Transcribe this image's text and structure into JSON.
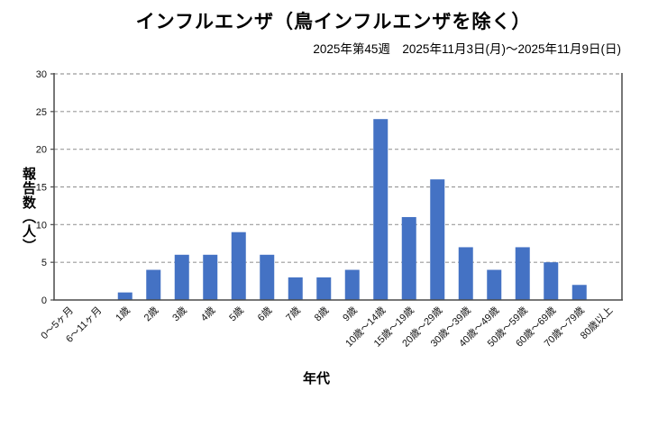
{
  "chart_data": {
    "type": "bar",
    "title": "インフルエンザ（鳥インフルエンザを除く）",
    "subtitle": "2025年第45週　2025年11月3日(月)～2025年11月9日(日)",
    "xlabel": "年代",
    "ylabel": "報告数（人）",
    "categories": [
      "0～5ヶ月",
      "6～11ヶ月",
      "1歳",
      "2歳",
      "3歳",
      "4歳",
      "5歳",
      "6歳",
      "7歳",
      "8歳",
      "9歳",
      "10歳～14歳",
      "15歳～19歳",
      "20歳～29歳",
      "30歳～39歳",
      "40歳～49歳",
      "50歳～59歳",
      "60歳～69歳",
      "70歳～79歳",
      "80歳以上"
    ],
    "values": [
      0,
      0,
      1,
      4,
      6,
      6,
      9,
      6,
      3,
      3,
      4,
      24,
      11,
      16,
      7,
      4,
      7,
      5,
      2,
      0
    ],
    "ylim": [
      0,
      30
    ],
    "yticks": [
      0,
      5,
      10,
      15,
      20,
      25,
      30
    ],
    "grid": "horizontal dashed",
    "legend": "none",
    "colors": {
      "bar": "#4472C4",
      "grid": "#9B9B9B",
      "axis": "#4A4A4A",
      "text": "#111111"
    }
  }
}
